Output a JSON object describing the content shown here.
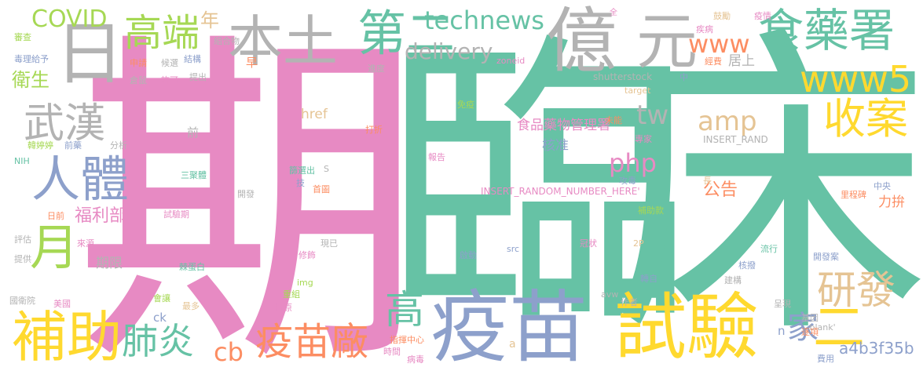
{
  "words": [
    {
      "text": "期",
      "color": "#e78ac3"
    },
    {
      "text": "臨",
      "color": "#66c2a5"
    },
    {
      "text": "床",
      "color": "#66c2a5"
    },
    {
      "text": "疫苗",
      "color": "#8da0cb"
    },
    {
      "text": "試驗",
      "color": "#ffd92f"
    },
    {
      "text": "億",
      "color": "#b3b3b3"
    },
    {
      "text": "元",
      "color": "#b3b3b3"
    },
    {
      "text": "日",
      "color": "#b3b3b3"
    },
    {
      "text": "本土",
      "color": "#b3b3b3"
    },
    {
      "text": "第二",
      "color": "#66c2a5"
    },
    {
      "text": "食藥署",
      "color": "#66c2a5"
    },
    {
      "text": "高端",
      "color": "#a6d854"
    },
    {
      "text": "technews",
      "color": "#66c2a5"
    },
    {
      "text": "delivery",
      "color": "#b3b3b3"
    },
    {
      "text": "COVID",
      "color": "#a6d854"
    },
    {
      "text": "年",
      "color": "#e5c494"
    },
    {
      "text": "www",
      "color": "#fc8d62"
    },
    {
      "text": "www5",
      "color": "#ffd92f"
    },
    {
      "text": "武漢",
      "color": "#b3b3b3"
    },
    {
      "text": "人體",
      "color": "#8da0cb"
    },
    {
      "text": "月",
      "color": "#a6d854"
    },
    {
      "text": "補助",
      "color": "#ffd92f"
    },
    {
      "text": "肺炎",
      "color": "#66c2a5"
    },
    {
      "text": "疫苗廠",
      "color": "#fc8d62"
    },
    {
      "text": "收案",
      "color": "#ffd92f"
    },
    {
      "text": "研發",
      "color": "#e5c494"
    },
    {
      "text": "高",
      "color": "#66c2a5"
    },
    {
      "text": "家",
      "color": "#8da0cb"
    },
    {
      "text": "二",
      "color": "#ffd92f"
    },
    {
      "text": "amp",
      "color": "#e5c494"
    },
    {
      "text": "tw",
      "color": "#b3b3b3"
    },
    {
      "text": "php",
      "color": "#e78ac3"
    },
    {
      "text": "cb",
      "color": "#fc8d62"
    },
    {
      "text": "衛生",
      "color": "#a6d854"
    },
    {
      "text": "福利部",
      "color": "#e78ac3"
    },
    {
      "text": "公告",
      "color": "#fc8d62"
    },
    {
      "text": "食品藥物管理署",
      "color": "#e78ac3"
    },
    {
      "text": "核准",
      "color": "#8da0cb"
    },
    {
      "text": "a4b3f35b",
      "color": "#8da0cb"
    },
    {
      "text": "早",
      "color": "#fc8d62"
    },
    {
      "text": "居上",
      "color": "#b3b3b3"
    },
    {
      "text": "href",
      "color": "#e5c494"
    },
    {
      "text": "期限",
      "color": "#b3b3b3"
    },
    {
      "text": "力拚",
      "color": "#fc8d62"
    },
    {
      "text": "shutterstock",
      "color": "#b3b3b3"
    },
    {
      "text": "INSERT_RANDOM_NUMBER_HERE'",
      "color": "#e78ac3"
    },
    {
      "text": "INSERT_RAND",
      "color": "#b3b3b3"
    },
    {
      "text": "審查",
      "color": "#a6d854"
    },
    {
      "text": "毒理給予",
      "color": "#8da0cb"
    },
    {
      "text": "組合物",
      "color": "#b3b3b3"
    },
    {
      "text": "申請",
      "color": "#fc8d62"
    },
    {
      "text": "候選",
      "color": "#b3b3b3"
    },
    {
      "text": "結構",
      "color": "#8da0cb"
    },
    {
      "text": "倉鼠",
      "color": "#b3b3b3"
    },
    {
      "text": "許可",
      "color": "#e78ac3"
    },
    {
      "text": "提出",
      "color": "#b3b3b3"
    },
    {
      "text": "進度",
      "color": "#b3b3b3"
    },
    {
      "text": "zoneid",
      "color": "#e78ac3"
    },
    {
      "text": "全",
      "color": "#e78ac3"
    },
    {
      "text": "鼓勵",
      "color": "#e5c494"
    },
    {
      "text": "疾病",
      "color": "#e78ac3"
    },
    {
      "text": "疫情",
      "color": "#e78ac3"
    },
    {
      "text": "經費",
      "color": "#fc8d62"
    },
    {
      "text": "中",
      "color": "#8da0cb"
    },
    {
      "text": "target",
      "color": "#e5c494"
    },
    {
      "text": "免疫",
      "color": "#a6d854"
    },
    {
      "text": "未能",
      "color": "#fc8d62"
    },
    {
      "text": "專家",
      "color": "#e78ac3"
    },
    {
      "text": "打折",
      "color": "#fc8d62"
    },
    {
      "text": "報告",
      "color": "#e78ac3"
    },
    {
      "text": "前",
      "color": "#b3b3b3"
    },
    {
      "text": "分析",
      "color": "#b3b3b3"
    },
    {
      "text": "韓婷婷",
      "color": "#a6d854"
    },
    {
      "text": "前藥",
      "color": "#8da0cb"
    },
    {
      "text": "NIH",
      "color": "#66c2a5"
    },
    {
      "text": "三聚體",
      "color": "#66c2a5"
    },
    {
      "text": "篩選出",
      "color": "#66c2a5"
    },
    {
      "text": "S",
      "color": "#b3b3b3"
    },
    {
      "text": "技",
      "color": "#8da0cb"
    },
    {
      "text": "首圖",
      "color": "#fc8d62"
    },
    {
      "text": "攻毒",
      "color": "#8da0cb"
    },
    {
      "text": "長",
      "color": "#e5c494"
    },
    {
      "text": "中央",
      "color": "#8da0cb"
    },
    {
      "text": "里程碑",
      "color": "#fc8d62"
    },
    {
      "text": "開發",
      "color": "#b3b3b3"
    },
    {
      "text": "日前",
      "color": "#fc8d62"
    },
    {
      "text": "試驗期",
      "color": "#e78ac3"
    },
    {
      "text": "補助款",
      "color": "#a6d854"
    },
    {
      "text": "評估",
      "color": "#b3b3b3"
    },
    {
      "text": "來源",
      "color": "#e78ac3"
    },
    {
      "text": "現已",
      "color": "#b3b3b3"
    },
    {
      "text": "提供",
      "color": "#b3b3b3"
    },
    {
      "text": "修飾",
      "color": "#e78ac3"
    },
    {
      "text": "啟動",
      "color": "#8da0cb"
    },
    {
      "text": "src",
      "color": "#8da0cb"
    },
    {
      "text": "冠狀",
      "color": "#e78ac3"
    },
    {
      "text": "2P",
      "color": "#e5c494"
    },
    {
      "text": "流行",
      "color": "#66c2a5"
    },
    {
      "text": "開發案",
      "color": "#8da0cb"
    },
    {
      "text": "核撥",
      "color": "#8da0cb"
    },
    {
      "text": "棘蛋白",
      "color": "#66c2a5"
    },
    {
      "text": "img",
      "color": "#a6d854"
    },
    {
      "text": "轉自",
      "color": "#8da0cb"
    },
    {
      "text": "建構",
      "color": "#b3b3b3"
    },
    {
      "text": "國衛院",
      "color": "#b3b3b3"
    },
    {
      "text": "美國",
      "color": "#e78ac3"
    },
    {
      "text": "會讓",
      "color": "#a6d854"
    },
    {
      "text": "最多",
      "color": "#e5c494"
    },
    {
      "text": "重組",
      "color": "#a6d854"
    },
    {
      "text": "抗原",
      "color": "#e78ac3"
    },
    {
      "text": "avw",
      "color": "#b3b3b3"
    },
    {
      "text": "作者",
      "color": "#b3b3b3"
    },
    {
      "text": "呈現",
      "color": "#b3b3b3"
    },
    {
      "text": "ck",
      "color": "#8da0cb"
    },
    {
      "text": "基因",
      "color": "#b3b3b3"
    },
    {
      "text": "_blank'",
      "color": "#b3b3b3"
    },
    {
      "text": "逐項",
      "color": "#fc8d62"
    },
    {
      "text": "n",
      "color": "#8da0cb"
    },
    {
      "text": "指揮中心",
      "color": "#fc8d62"
    },
    {
      "text": "時間",
      "color": "#e78ac3"
    },
    {
      "text": "病毒",
      "color": "#e78ac3"
    },
    {
      "text": "a",
      "color": "#e5c494"
    },
    {
      "text": "費用",
      "color": "#8da0cb"
    }
  ]
}
